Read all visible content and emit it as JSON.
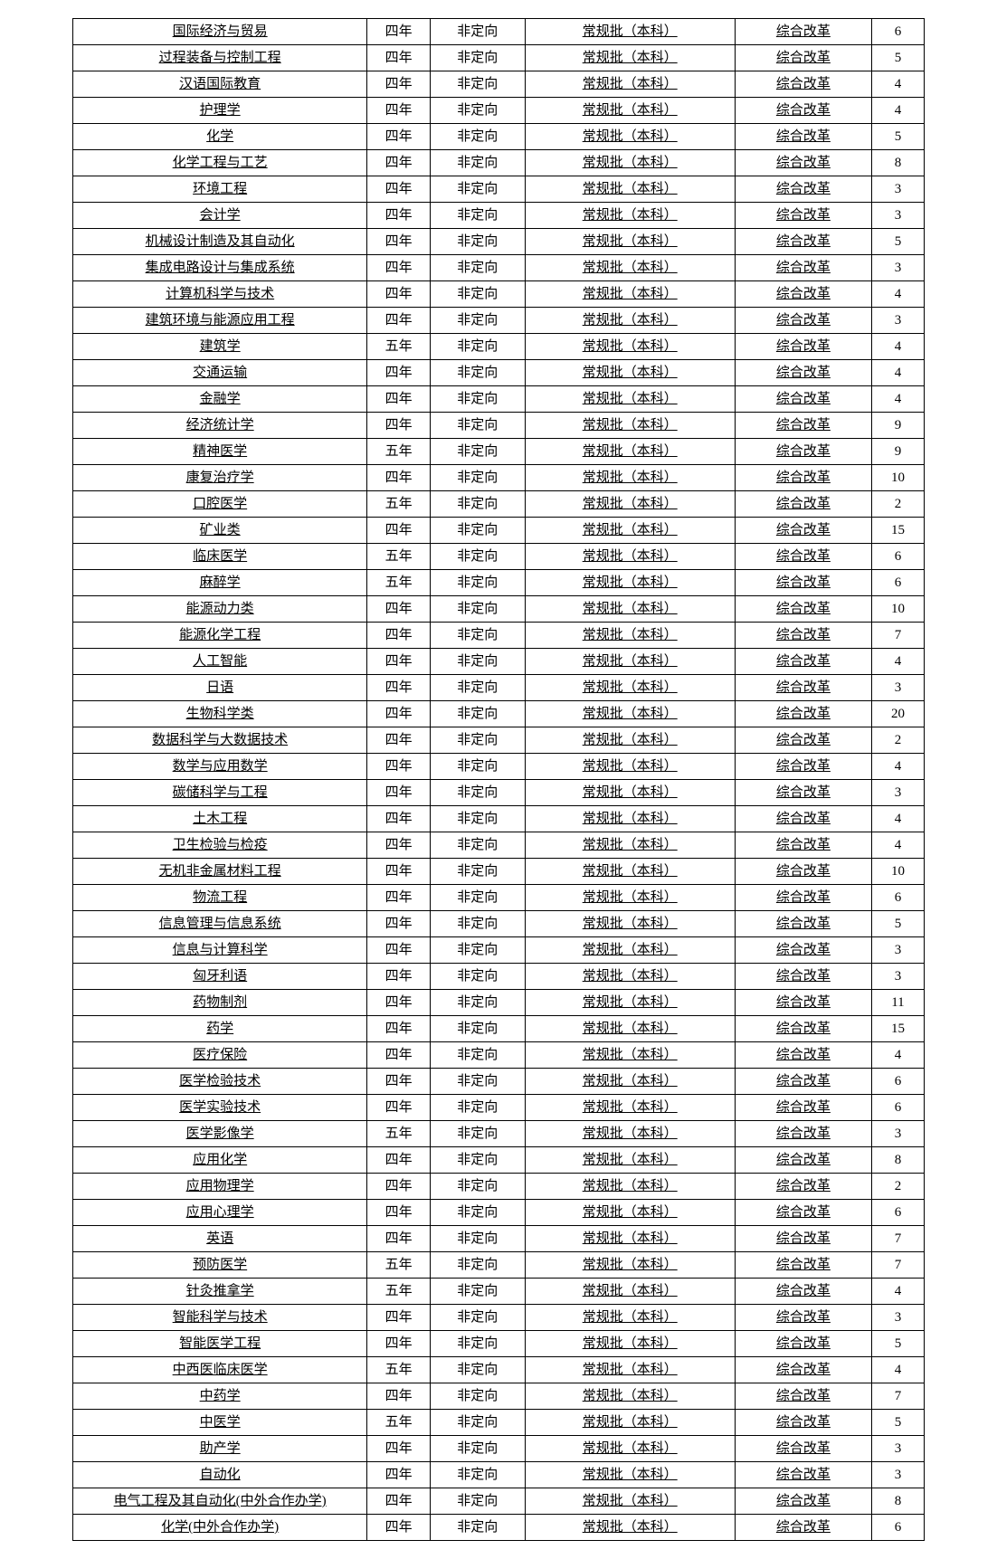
{
  "columns": {
    "widths": [
      "280px",
      "60px",
      "90px",
      "200px",
      "130px",
      "50px"
    ]
  },
  "rows": [
    {
      "major": "国际经济与贸易",
      "years": "四年",
      "orient": "非定向",
      "batch": "常规批（本科）",
      "reform": "综合改革",
      "count": "6"
    },
    {
      "major": "过程装备与控制工程",
      "years": "四年",
      "orient": "非定向",
      "batch": "常规批（本科）",
      "reform": "综合改革",
      "count": "5"
    },
    {
      "major": "汉语国际教育",
      "years": "四年",
      "orient": "非定向",
      "batch": "常规批（本科）",
      "reform": "综合改革",
      "count": "4"
    },
    {
      "major": "护理学",
      "years": "四年",
      "orient": "非定向",
      "batch": "常规批（本科）",
      "reform": "综合改革",
      "count": "4"
    },
    {
      "major": "化学",
      "years": "四年",
      "orient": "非定向",
      "batch": "常规批（本科）",
      "reform": "综合改革",
      "count": "5"
    },
    {
      "major": "化学工程与工艺",
      "years": "四年",
      "orient": "非定向",
      "batch": "常规批（本科）",
      "reform": "综合改革",
      "count": "8"
    },
    {
      "major": "环境工程",
      "years": "四年",
      "orient": "非定向",
      "batch": "常规批（本科）",
      "reform": "综合改革",
      "count": "3"
    },
    {
      "major": "会计学",
      "years": "四年",
      "orient": "非定向",
      "batch": "常规批（本科）",
      "reform": "综合改革",
      "count": "3"
    },
    {
      "major": "机械设计制造及其自动化",
      "years": "四年",
      "orient": "非定向",
      "batch": "常规批（本科）",
      "reform": "综合改革",
      "count": "5"
    },
    {
      "major": "集成电路设计与集成系统",
      "years": "四年",
      "orient": "非定向",
      "batch": "常规批（本科）",
      "reform": "综合改革",
      "count": "3"
    },
    {
      "major": "计算机科学与技术",
      "years": "四年",
      "orient": "非定向",
      "batch": "常规批（本科）",
      "reform": "综合改革",
      "count": "4"
    },
    {
      "major": "建筑环境与能源应用工程",
      "years": "四年",
      "orient": "非定向",
      "batch": "常规批（本科）",
      "reform": "综合改革",
      "count": "3"
    },
    {
      "major": "建筑学",
      "years": "五年",
      "orient": "非定向",
      "batch": "常规批（本科）",
      "reform": "综合改革",
      "count": "4"
    },
    {
      "major": "交通运输",
      "years": "四年",
      "orient": "非定向",
      "batch": "常规批（本科）",
      "reform": "综合改革",
      "count": "4"
    },
    {
      "major": "金融学",
      "years": "四年",
      "orient": "非定向",
      "batch": "常规批（本科）",
      "reform": "综合改革",
      "count": "4"
    },
    {
      "major": "经济统计学",
      "years": "四年",
      "orient": "非定向",
      "batch": "常规批（本科）",
      "reform": "综合改革",
      "count": "9"
    },
    {
      "major": "精神医学",
      "years": "五年",
      "orient": "非定向",
      "batch": "常规批（本科）",
      "reform": "综合改革",
      "count": "9"
    },
    {
      "major": "康复治疗学",
      "years": "四年",
      "orient": "非定向",
      "batch": "常规批（本科）",
      "reform": "综合改革",
      "count": "10"
    },
    {
      "major": "口腔医学",
      "years": "五年",
      "orient": "非定向",
      "batch": "常规批（本科）",
      "reform": "综合改革",
      "count": "2"
    },
    {
      "major": "矿业类",
      "years": "四年",
      "orient": "非定向",
      "batch": "常规批（本科）",
      "reform": "综合改革",
      "count": "15"
    },
    {
      "major": "临床医学",
      "years": "五年",
      "orient": "非定向",
      "batch": "常规批（本科）",
      "reform": "综合改革",
      "count": "6"
    },
    {
      "major": "麻醉学",
      "years": "五年",
      "orient": "非定向",
      "batch": "常规批（本科）",
      "reform": "综合改革",
      "count": "6"
    },
    {
      "major": "能源动力类",
      "years": "四年",
      "orient": "非定向",
      "batch": "常规批（本科）",
      "reform": "综合改革",
      "count": "10"
    },
    {
      "major": "能源化学工程",
      "years": "四年",
      "orient": "非定向",
      "batch": "常规批（本科）",
      "reform": "综合改革",
      "count": "7"
    },
    {
      "major": "人工智能",
      "years": "四年",
      "orient": "非定向",
      "batch": "常规批（本科）",
      "reform": "综合改革",
      "count": "4"
    },
    {
      "major": "日语",
      "years": "四年",
      "orient": "非定向",
      "batch": "常规批（本科）",
      "reform": "综合改革",
      "count": "3"
    },
    {
      "major": "生物科学类",
      "years": "四年",
      "orient": "非定向",
      "batch": "常规批（本科）",
      "reform": "综合改革",
      "count": "20"
    },
    {
      "major": "数据科学与大数据技术",
      "years": "四年",
      "orient": "非定向",
      "batch": "常规批（本科）",
      "reform": "综合改革",
      "count": "2"
    },
    {
      "major": "数学与应用数学",
      "years": "四年",
      "orient": "非定向",
      "batch": "常规批（本科）",
      "reform": "综合改革",
      "count": "4"
    },
    {
      "major": "碳储科学与工程",
      "years": "四年",
      "orient": "非定向",
      "batch": "常规批（本科）",
      "reform": "综合改革",
      "count": "3"
    },
    {
      "major": "土木工程",
      "years": "四年",
      "orient": "非定向",
      "batch": "常规批（本科）",
      "reform": "综合改革",
      "count": "4"
    },
    {
      "major": "卫生检验与检疫",
      "years": "四年",
      "orient": "非定向",
      "batch": "常规批（本科）",
      "reform": "综合改革",
      "count": "4"
    },
    {
      "major": "无机非金属材料工程",
      "years": "四年",
      "orient": "非定向",
      "batch": "常规批（本科）",
      "reform": "综合改革",
      "count": "10"
    },
    {
      "major": "物流工程",
      "years": "四年",
      "orient": "非定向",
      "batch": "常规批（本科）",
      "reform": "综合改革",
      "count": "6"
    },
    {
      "major": "信息管理与信息系统",
      "years": "四年",
      "orient": "非定向",
      "batch": "常规批（本科）",
      "reform": "综合改革",
      "count": "5"
    },
    {
      "major": "信息与计算科学",
      "years": "四年",
      "orient": "非定向",
      "batch": "常规批（本科）",
      "reform": "综合改革",
      "count": "3"
    },
    {
      "major": "匈牙利语",
      "years": "四年",
      "orient": "非定向",
      "batch": "常规批（本科）",
      "reform": "综合改革",
      "count": "3"
    },
    {
      "major": "药物制剂",
      "years": "四年",
      "orient": "非定向",
      "batch": "常规批（本科）",
      "reform": "综合改革",
      "count": "11"
    },
    {
      "major": "药学",
      "years": "四年",
      "orient": "非定向",
      "batch": "常规批（本科）",
      "reform": "综合改革",
      "count": "15"
    },
    {
      "major": "医疗保险",
      "years": "四年",
      "orient": "非定向",
      "batch": "常规批（本科）",
      "reform": "综合改革",
      "count": "4"
    },
    {
      "major": "医学检验技术",
      "years": "四年",
      "orient": "非定向",
      "batch": "常规批（本科）",
      "reform": "综合改革",
      "count": "6"
    },
    {
      "major": "医学实验技术",
      "years": "四年",
      "orient": "非定向",
      "batch": "常规批（本科）",
      "reform": "综合改革",
      "count": "6"
    },
    {
      "major": "医学影像学",
      "years": "五年",
      "orient": "非定向",
      "batch": "常规批（本科）",
      "reform": "综合改革",
      "count": "3"
    },
    {
      "major": "应用化学",
      "years": "四年",
      "orient": "非定向",
      "batch": "常规批（本科）",
      "reform": "综合改革",
      "count": "8"
    },
    {
      "major": "应用物理学",
      "years": "四年",
      "orient": "非定向",
      "batch": "常规批（本科）",
      "reform": "综合改革",
      "count": "2"
    },
    {
      "major": "应用心理学",
      "years": "四年",
      "orient": "非定向",
      "batch": "常规批（本科）",
      "reform": "综合改革",
      "count": "6"
    },
    {
      "major": "英语",
      "years": "四年",
      "orient": "非定向",
      "batch": "常规批（本科）",
      "reform": "综合改革",
      "count": "7"
    },
    {
      "major": "预防医学",
      "years": "五年",
      "orient": "非定向",
      "batch": "常规批（本科）",
      "reform": "综合改革",
      "count": "7"
    },
    {
      "major": "针灸推拿学",
      "years": "五年",
      "orient": "非定向",
      "batch": "常规批（本科）",
      "reform": "综合改革",
      "count": "4"
    },
    {
      "major": "智能科学与技术",
      "years": "四年",
      "orient": "非定向",
      "batch": "常规批（本科）",
      "reform": "综合改革",
      "count": "3"
    },
    {
      "major": "智能医学工程",
      "years": "四年",
      "orient": "非定向",
      "batch": "常规批（本科）",
      "reform": "综合改革",
      "count": "5"
    },
    {
      "major": "中西医临床医学",
      "years": "五年",
      "orient": "非定向",
      "batch": "常规批（本科）",
      "reform": "综合改革",
      "count": "4"
    },
    {
      "major": "中药学",
      "years": "四年",
      "orient": "非定向",
      "batch": "常规批（本科）",
      "reform": "综合改革",
      "count": "7"
    },
    {
      "major": "中医学",
      "years": "五年",
      "orient": "非定向",
      "batch": "常规批（本科）",
      "reform": "综合改革",
      "count": "5"
    },
    {
      "major": "助产学",
      "years": "四年",
      "orient": "非定向",
      "batch": "常规批（本科）",
      "reform": "综合改革",
      "count": "3"
    },
    {
      "major": "自动化",
      "years": "四年",
      "orient": "非定向",
      "batch": "常规批（本科）",
      "reform": "综合改革",
      "count": "3"
    },
    {
      "major": "电气工程及其自动化(中外合作办学)",
      "years": "四年",
      "orient": "非定向",
      "batch": "常规批（本科）",
      "reform": "综合改革",
      "count": "8"
    },
    {
      "major": "化学(中外合作办学)",
      "years": "四年",
      "orient": "非定向",
      "batch": "常规批（本科）",
      "reform": "综合改革",
      "count": "6"
    }
  ]
}
